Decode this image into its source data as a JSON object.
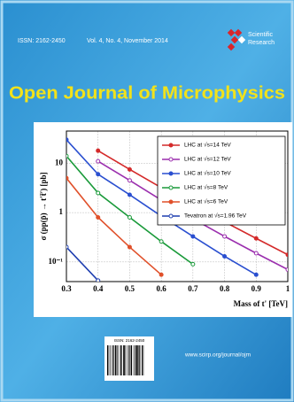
{
  "cover": {
    "issn": "ISSN: 2162-2450",
    "issue": "Vol. 4, No. 4, November 2014",
    "publisher": [
      "Scientific",
      "Research"
    ],
    "title": "Open Journal of Microphysics",
    "barcode_issn": "ISSN: 2162-2450",
    "url": "www.scirp.org/journal/ojm"
  },
  "chart_data": {
    "type": "line",
    "x_label": "Mass of t' [TeV]",
    "y_label": "σ (pp(p̄) → t′t̄′) [pb]",
    "x": [
      0.3,
      0.4,
      0.5,
      0.6,
      0.7,
      0.8,
      0.9,
      1.0
    ],
    "xlim": [
      0.3,
      1.0
    ],
    "xticks": [
      0.3,
      0.4,
      0.5,
      0.6,
      0.7,
      0.8,
      0.9,
      {
        "value": 1.0,
        "label": "1"
      }
    ],
    "ylim": [
      0.04,
      45
    ],
    "yticks": [
      {
        "value": 0.1,
        "label": "10⁻¹"
      },
      1,
      10
    ],
    "log_y": true,
    "grid": true,
    "legend": "upper right",
    "series": [
      {
        "name": "LHC at √s=14 TeV",
        "color": "#d42a2a",
        "values": [
          null,
          18,
          7.5,
          3.2,
          1.4,
          0.65,
          0.3,
          0.14
        ]
      },
      {
        "name": "LHC at √s=12 TeV",
        "color": "#9b2fae",
        "values": [
          null,
          11,
          4.5,
          1.8,
          0.75,
          0.33,
          0.15,
          0.07
        ]
      },
      {
        "name": "LHC at √s=10 TeV",
        "color": "#2a4fd0",
        "values": [
          30,
          6,
          2.3,
          0.85,
          0.33,
          0.13,
          0.055,
          null
        ]
      },
      {
        "name": "LHC at √s=8 TeV",
        "color": "#1a9a3a",
        "values": [
          14,
          2.5,
          0.8,
          0.26,
          0.09,
          null,
          null,
          null
        ]
      },
      {
        "name": "LHC at √s=6 TeV",
        "color": "#e0502a",
        "values": [
          5,
          0.8,
          0.2,
          0.055,
          null,
          null,
          null,
          null
        ]
      },
      {
        "name": "Tevatron at √s=1.96 TeV",
        "color": "#1f3fb0",
        "values": [
          0.2,
          0.042,
          null,
          null,
          null,
          null,
          null,
          null
        ]
      }
    ]
  }
}
